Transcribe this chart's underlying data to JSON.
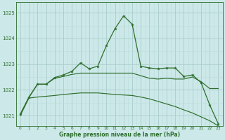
{
  "title": "Graphe pression niveau de la mer (hPa)",
  "bg_color": "#cce8e8",
  "grid_color_major": "#aacccc",
  "grid_color_minor": "#bbdddd",
  "line_color": "#2d6e2d",
  "ylim": [
    1020.6,
    1025.4
  ],
  "yticks": [
    1021,
    1022,
    1023,
    1024,
    1025
  ],
  "s_main": [
    1021.05,
    1021.7,
    1022.22,
    1022.22,
    1022.48,
    1022.58,
    1022.72,
    1023.05,
    1022.82,
    1022.92,
    1023.72,
    1024.38,
    1024.88,
    1024.55,
    1022.92,
    1022.85,
    1022.82,
    1022.85,
    1022.85,
    1022.52,
    1022.58,
    1022.28,
    1021.42,
    1020.68
  ],
  "s_mid": [
    1021.05,
    1021.72,
    1022.22,
    1022.22,
    1022.45,
    1022.52,
    1022.6,
    1022.65,
    1022.65,
    1022.65,
    1022.65,
    1022.65,
    1022.65,
    1022.65,
    1022.55,
    1022.45,
    1022.42,
    1022.45,
    1022.42,
    1022.42,
    1022.5,
    1022.32,
    1022.05,
    1022.05
  ],
  "s_low": [
    1021.0,
    1021.68,
    1021.72,
    1021.75,
    1021.78,
    1021.82,
    1021.85,
    1021.88,
    1021.88,
    1021.88,
    1021.85,
    1021.82,
    1021.8,
    1021.78,
    1021.72,
    1021.65,
    1021.55,
    1021.45,
    1021.35,
    1021.22,
    1021.1,
    1020.95,
    1020.8,
    1020.6
  ]
}
